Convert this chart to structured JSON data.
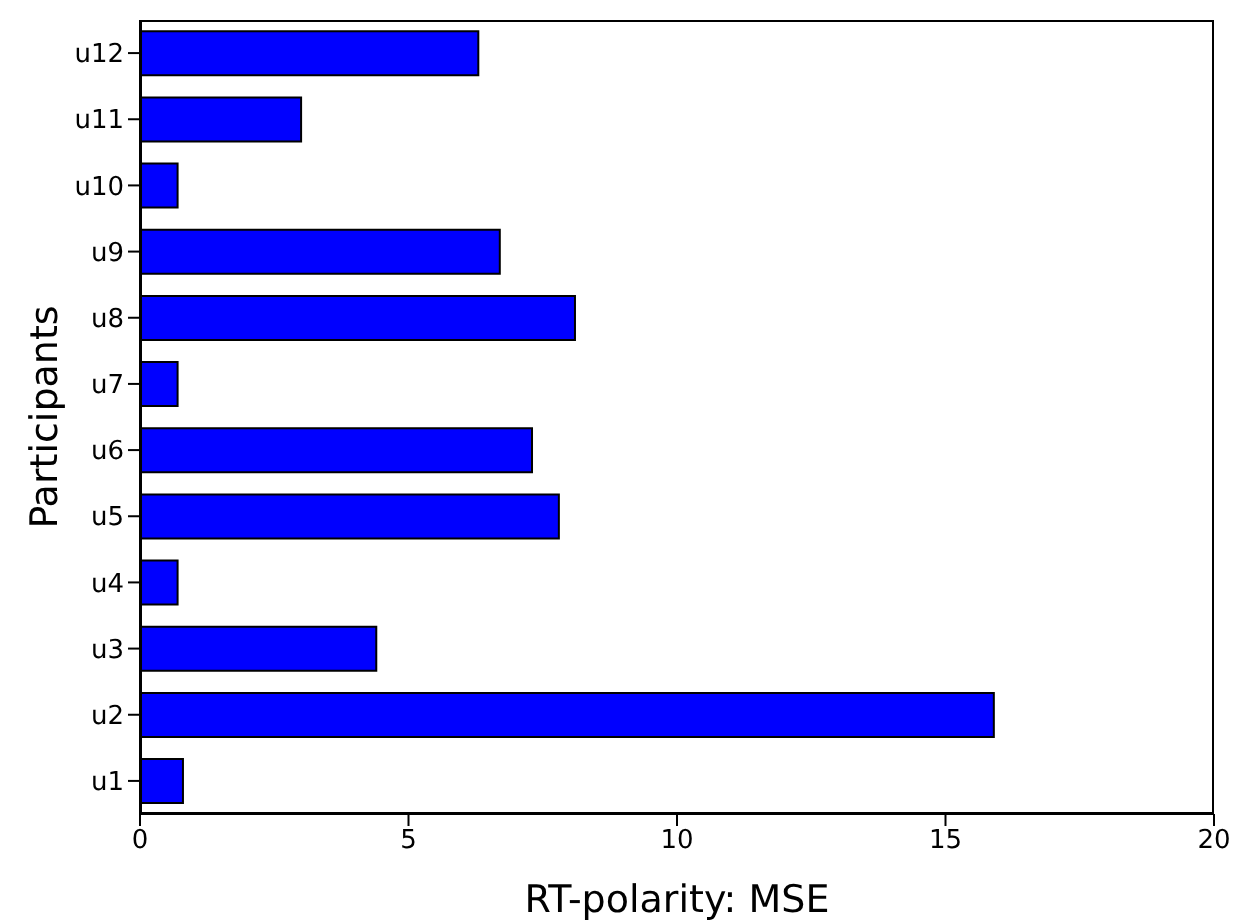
{
  "chart_data": {
    "type": "bar",
    "orientation": "horizontal",
    "categories": [
      "u12",
      "u11",
      "u10",
      "u9",
      "u8",
      "u7",
      "u6",
      "u5",
      "u4",
      "u3",
      "u2",
      "u1"
    ],
    "values": [
      6.3,
      3.0,
      0.7,
      6.7,
      8.1,
      0.7,
      7.3,
      7.8,
      0.7,
      4.4,
      15.9,
      0.8
    ],
    "color": "#0000ff",
    "xlim": [
      0,
      20
    ],
    "xticks": [
      0,
      5,
      10,
      15,
      20
    ],
    "xlabel": "RT-polarity: MSE",
    "ylabel": "Participants",
    "grid": false
  }
}
